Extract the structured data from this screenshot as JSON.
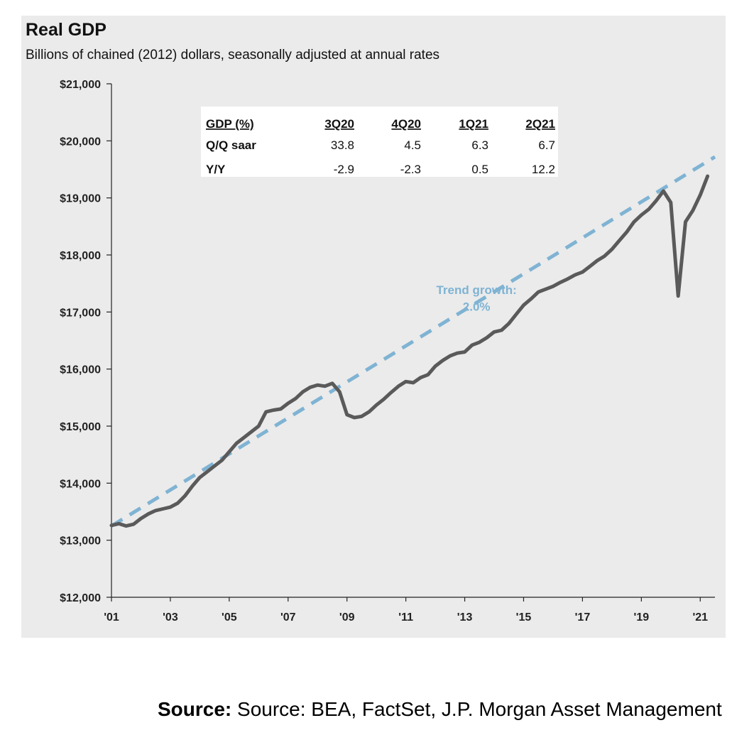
{
  "chart_data": {
    "type": "line",
    "title": "Real GDP",
    "subtitle": "Billions of chained (2012) dollars, seasonally adjusted at annual rates",
    "xlabel": "",
    "ylabel": "",
    "xlim": [
      2001,
      2021.5
    ],
    "ylim": [
      12000,
      21000
    ],
    "y_ticks": [
      12000,
      13000,
      14000,
      15000,
      16000,
      17000,
      18000,
      19000,
      20000,
      21000
    ],
    "y_tick_labels": [
      "$12,000",
      "$13,000",
      "$14,000",
      "$15,000",
      "$16,000",
      "$17,000",
      "$18,000",
      "$19,000",
      "$20,000",
      "$21,000"
    ],
    "x_ticks": [
      2001,
      2003,
      2005,
      2007,
      2009,
      2011,
      2013,
      2015,
      2017,
      2019,
      2021
    ],
    "x_tick_labels": [
      "'01",
      "'03",
      "'05",
      "'07",
      "'09",
      "'11",
      "'13",
      "'15",
      "'17",
      "'19",
      "'21"
    ],
    "grid": false,
    "series": [
      {
        "color": "#5a5a5a",
        "style": "solid",
        "x": [
          2001.0,
          2001.25,
          2001.5,
          2001.75,
          2002.0,
          2002.25,
          2002.5,
          2002.75,
          2003.0,
          2003.25,
          2003.5,
          2003.75,
          2004.0,
          2004.25,
          2004.5,
          2004.75,
          2005.0,
          2005.25,
          2005.5,
          2005.75,
          2006.0,
          2006.25,
          2006.5,
          2006.75,
          2007.0,
          2007.25,
          2007.5,
          2007.75,
          2008.0,
          2008.25,
          2008.5,
          2008.75,
          2009.0,
          2009.25,
          2009.5,
          2009.75,
          2010.0,
          2010.25,
          2010.5,
          2010.75,
          2011.0,
          2011.25,
          2011.5,
          2011.75,
          2012.0,
          2012.25,
          2012.5,
          2012.75,
          2013.0,
          2013.25,
          2013.5,
          2013.75,
          2014.0,
          2014.25,
          2014.5,
          2014.75,
          2015.0,
          2015.25,
          2015.5,
          2015.75,
          2016.0,
          2016.25,
          2016.5,
          2016.75,
          2017.0,
          2017.25,
          2017.5,
          2017.75,
          2018.0,
          2018.25,
          2018.5,
          2018.75,
          2019.0,
          2019.25,
          2019.5,
          2019.75,
          2020.0,
          2020.25,
          2020.5,
          2020.75,
          2021.0,
          2021.25
        ],
        "values": [
          13260,
          13290,
          13250,
          13280,
          13380,
          13460,
          13520,
          13550,
          13580,
          13650,
          13780,
          13950,
          14100,
          14200,
          14300,
          14400,
          14550,
          14700,
          14800,
          14900,
          15000,
          15250,
          15280,
          15300,
          15400,
          15480,
          15600,
          15680,
          15720,
          15700,
          15750,
          15600,
          15200,
          15150,
          15170,
          15250,
          15370,
          15470,
          15590,
          15700,
          15780,
          15760,
          15850,
          15900,
          16050,
          16150,
          16230,
          16280,
          16300,
          16420,
          16470,
          16550,
          16650,
          16680,
          16800,
          16960,
          17120,
          17230,
          17350,
          17400,
          17450,
          17520,
          17580,
          17650,
          17700,
          17800,
          17900,
          17980,
          18100,
          18250,
          18400,
          18580,
          18700,
          18800,
          18950,
          19120,
          18920,
          17280,
          18580,
          18780,
          19050,
          19380
        ]
      },
      {
        "name": "Trend growth: 2.0%",
        "color": "#7fb3d3",
        "style": "dashed",
        "x": [
          2001.0,
          2021.5
        ],
        "values": [
          13250,
          19720
        ]
      }
    ],
    "annotations": [
      {
        "text": "Trend growth:",
        "x": 2013.4,
        "y": 17390
      },
      {
        "text": "2.0%",
        "x": 2013.4,
        "y": 17100
      }
    ],
    "table": {
      "header": [
        "GDP (%)",
        "3Q20",
        "4Q20",
        "1Q21",
        "2Q21"
      ],
      "rows": [
        [
          "Q/Q saar",
          "33.8",
          "4.5",
          "6.3",
          "6.7"
        ],
        [
          "Y/Y",
          "-2.9",
          "-2.3",
          "0.5",
          "12.2"
        ]
      ]
    }
  },
  "source": {
    "label": "Source:",
    "text": " Source: BEA, FactSet, J.P. Morgan Asset Management"
  },
  "colors": {
    "panel_background": "#ebebeb",
    "gdp_line": "#5a5a5a",
    "trend_line": "#7fb3d3"
  }
}
